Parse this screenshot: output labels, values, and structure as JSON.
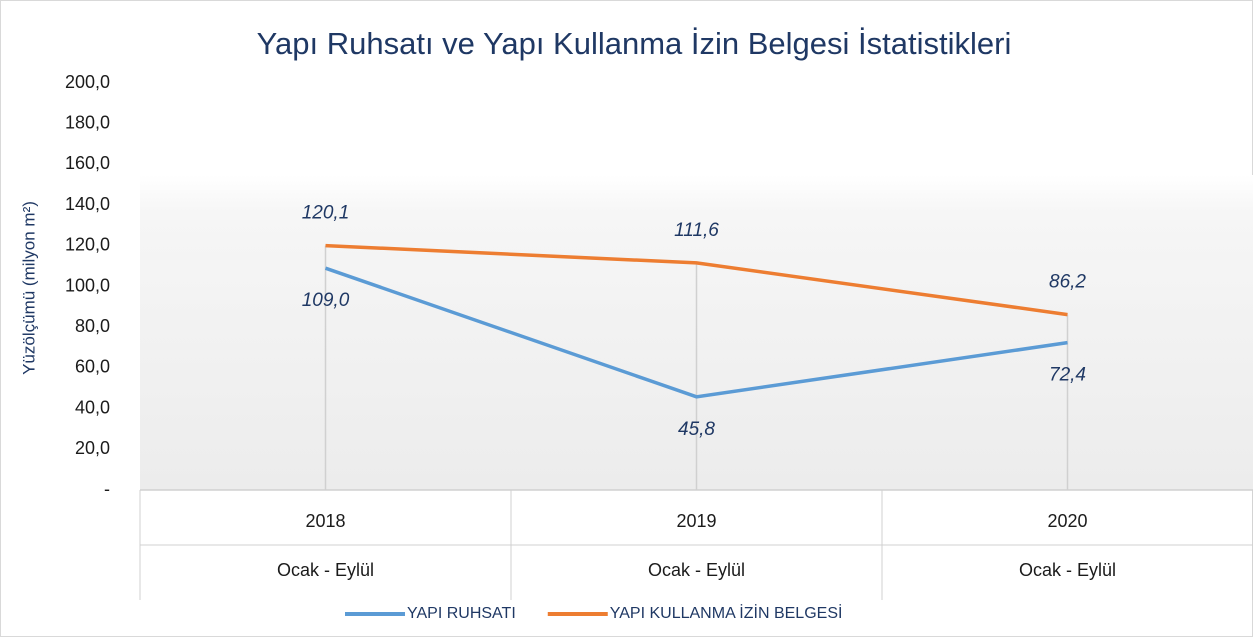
{
  "chart_data": {
    "type": "line",
    "title": "Yapı Ruhsatı ve Yapı Kullanma İzin Belgesi İstatistikleri",
    "ylabel": "Yüzölçümü (milyon m²)",
    "categories": [
      "2018",
      "2019",
      "2020"
    ],
    "subcategories": [
      "Ocak - Eylül",
      "Ocak - Eylül",
      "Ocak - Eylül"
    ],
    "series": [
      {
        "name": "YAPI RUHSATI",
        "color": "#5b9bd5",
        "values": [
          109.0,
          45.8,
          72.4
        ],
        "value_labels": [
          "109,0",
          "45,8",
          "72,4"
        ]
      },
      {
        "name": "YAPI KULLANMA İZİN BELGESİ",
        "color": "#ed7d31",
        "values": [
          120.1,
          111.6,
          86.2
        ],
        "value_labels": [
          "120,1",
          "111,6",
          "86,2"
        ]
      }
    ],
    "ylim": [
      0,
      200
    ],
    "yticks": [
      {
        "value": 0,
        "label": "-"
      },
      {
        "value": 20,
        "label": "20,0"
      },
      {
        "value": 40,
        "label": "40,0"
      },
      {
        "value": 60,
        "label": "60,0"
      },
      {
        "value": 80,
        "label": "80,0"
      },
      {
        "value": 100,
        "label": "100,0"
      },
      {
        "value": 120,
        "label": "120,0"
      },
      {
        "value": 140,
        "label": "140,0"
      },
      {
        "value": 160,
        "label": "160,0"
      },
      {
        "value": 180,
        "label": "180,0"
      },
      {
        "value": 200,
        "label": "200,0"
      }
    ],
    "legend": "bottom"
  }
}
